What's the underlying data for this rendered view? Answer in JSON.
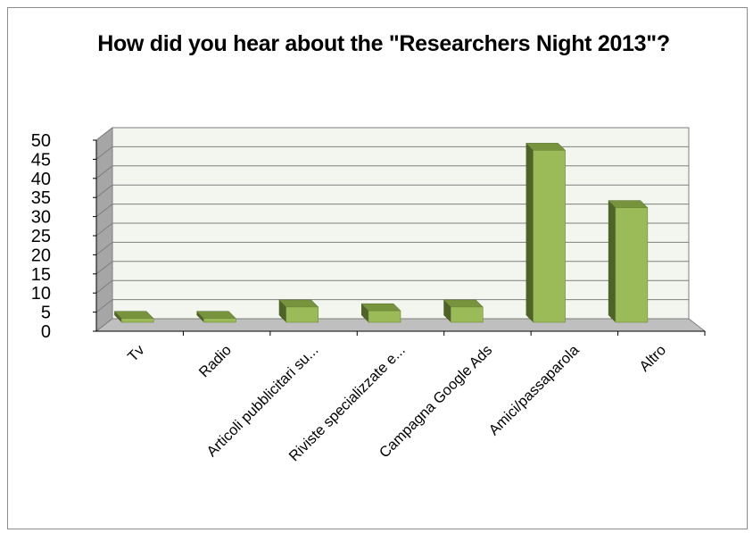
{
  "chart_data": {
    "type": "bar",
    "title": "How did you hear about the \"Researchers Night 2013\"?",
    "categories": [
      "Tv",
      "Radio",
      "Articoli pubblicitari su...",
      "Riviste specializzate e...",
      "Campagna Google Ads",
      "Amici/passaparola",
      "Altro"
    ],
    "values": [
      1,
      1,
      4,
      3,
      4,
      45,
      30
    ],
    "ylim": [
      0,
      50
    ],
    "yticks": [
      0,
      5,
      10,
      15,
      20,
      25,
      30,
      35,
      40,
      45,
      50
    ],
    "grid": true,
    "legend": "none",
    "style": "3d-column",
    "colors": {
      "bar_front": "#9bbb59",
      "bar_side": "#4f6228",
      "bar_top": "#77933c",
      "wall": "#f2f6ee",
      "floor": "#bfbfbf",
      "side_wall": "#a6a6a6",
      "grid": "#7f7f7f",
      "frame": "#8c8c8c"
    }
  }
}
